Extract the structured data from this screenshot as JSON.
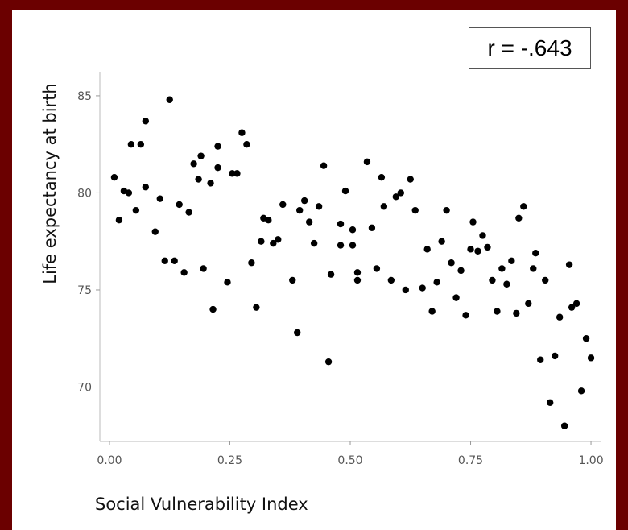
{
  "annotation": "r = -.643",
  "chart_data": {
    "type": "scatter",
    "xlabel": "Social Vulnerability Index",
    "ylabel": "Life expectancy at birth",
    "xlim": [
      -0.02,
      1.02
    ],
    "ylim": [
      67.2,
      86.2
    ],
    "xticks": [
      "0.00",
      "0.25",
      "0.50",
      "0.75",
      "1.00"
    ],
    "yticks": [
      "70",
      "75",
      "80",
      "85"
    ],
    "xtick_values": [
      0,
      0.25,
      0.5,
      0.75,
      1
    ],
    "ytick_values": [
      70,
      75,
      80,
      85
    ],
    "grid": false,
    "points": [
      [
        0.01,
        80.8
      ],
      [
        0.02,
        78.6
      ],
      [
        0.03,
        80.1
      ],
      [
        0.04,
        80.0
      ],
      [
        0.045,
        82.5
      ],
      [
        0.055,
        79.1
      ],
      [
        0.065,
        82.5
      ],
      [
        0.075,
        83.7
      ],
      [
        0.075,
        80.3
      ],
      [
        0.095,
        78.0
      ],
      [
        0.105,
        79.7
      ],
      [
        0.115,
        76.5
      ],
      [
        0.125,
        84.8
      ],
      [
        0.135,
        76.5
      ],
      [
        0.145,
        79.4
      ],
      [
        0.155,
        75.9
      ],
      [
        0.165,
        79.0
      ],
      [
        0.175,
        81.5
      ],
      [
        0.185,
        80.7
      ],
      [
        0.19,
        81.9
      ],
      [
        0.195,
        76.1
      ],
      [
        0.21,
        80.5
      ],
      [
        0.215,
        74.0
      ],
      [
        0.225,
        81.3
      ],
      [
        0.225,
        82.4
      ],
      [
        0.245,
        75.4
      ],
      [
        0.255,
        81.0
      ],
      [
        0.265,
        81.0
      ],
      [
        0.275,
        83.1
      ],
      [
        0.285,
        82.5
      ],
      [
        0.295,
        76.4
      ],
      [
        0.305,
        74.1
      ],
      [
        0.315,
        77.5
      ],
      [
        0.32,
        78.7
      ],
      [
        0.33,
        78.6
      ],
      [
        0.34,
        77.4
      ],
      [
        0.35,
        77.6
      ],
      [
        0.36,
        79.4
      ],
      [
        0.38,
        75.5
      ],
      [
        0.39,
        72.8
      ],
      [
        0.395,
        79.1
      ],
      [
        0.405,
        79.6
      ],
      [
        0.415,
        78.5
      ],
      [
        0.425,
        77.4
      ],
      [
        0.435,
        79.3
      ],
      [
        0.445,
        81.4
      ],
      [
        0.455,
        71.3
      ],
      [
        0.46,
        75.8
      ],
      [
        0.48,
        78.4
      ],
      [
        0.48,
        77.3
      ],
      [
        0.49,
        80.1
      ],
      [
        0.505,
        78.1
      ],
      [
        0.505,
        77.3
      ],
      [
        0.515,
        75.9
      ],
      [
        0.515,
        75.5
      ],
      [
        0.535,
        81.6
      ],
      [
        0.545,
        78.2
      ],
      [
        0.555,
        76.1
      ],
      [
        0.565,
        80.8
      ],
      [
        0.57,
        79.3
      ],
      [
        0.585,
        75.5
      ],
      [
        0.595,
        79.8
      ],
      [
        0.605,
        80.0
      ],
      [
        0.615,
        75.0
      ],
      [
        0.625,
        80.7
      ],
      [
        0.635,
        79.1
      ],
      [
        0.65,
        75.1
      ],
      [
        0.66,
        77.1
      ],
      [
        0.67,
        73.9
      ],
      [
        0.68,
        75.4
      ],
      [
        0.69,
        77.5
      ],
      [
        0.7,
        79.1
      ],
      [
        0.71,
        76.4
      ],
      [
        0.72,
        74.6
      ],
      [
        0.73,
        76.0
      ],
      [
        0.74,
        73.7
      ],
      [
        0.75,
        77.1
      ],
      [
        0.755,
        78.5
      ],
      [
        0.765,
        77.0
      ],
      [
        0.775,
        77.8
      ],
      [
        0.785,
        77.2
      ],
      [
        0.795,
        75.5
      ],
      [
        0.805,
        73.9
      ],
      [
        0.815,
        76.1
      ],
      [
        0.825,
        75.3
      ],
      [
        0.835,
        76.5
      ],
      [
        0.845,
        73.8
      ],
      [
        0.85,
        78.7
      ],
      [
        0.86,
        79.3
      ],
      [
        0.87,
        74.3
      ],
      [
        0.88,
        76.1
      ],
      [
        0.885,
        76.9
      ],
      [
        0.895,
        71.4
      ],
      [
        0.905,
        75.5
      ],
      [
        0.915,
        69.2
      ],
      [
        0.925,
        71.6
      ],
      [
        0.935,
        73.6
      ],
      [
        0.945,
        68.0
      ],
      [
        0.955,
        76.3
      ],
      [
        0.96,
        74.1
      ],
      [
        0.97,
        74.3
      ],
      [
        0.98,
        69.8
      ],
      [
        0.99,
        72.5
      ],
      [
        1.0,
        71.5
      ]
    ]
  }
}
